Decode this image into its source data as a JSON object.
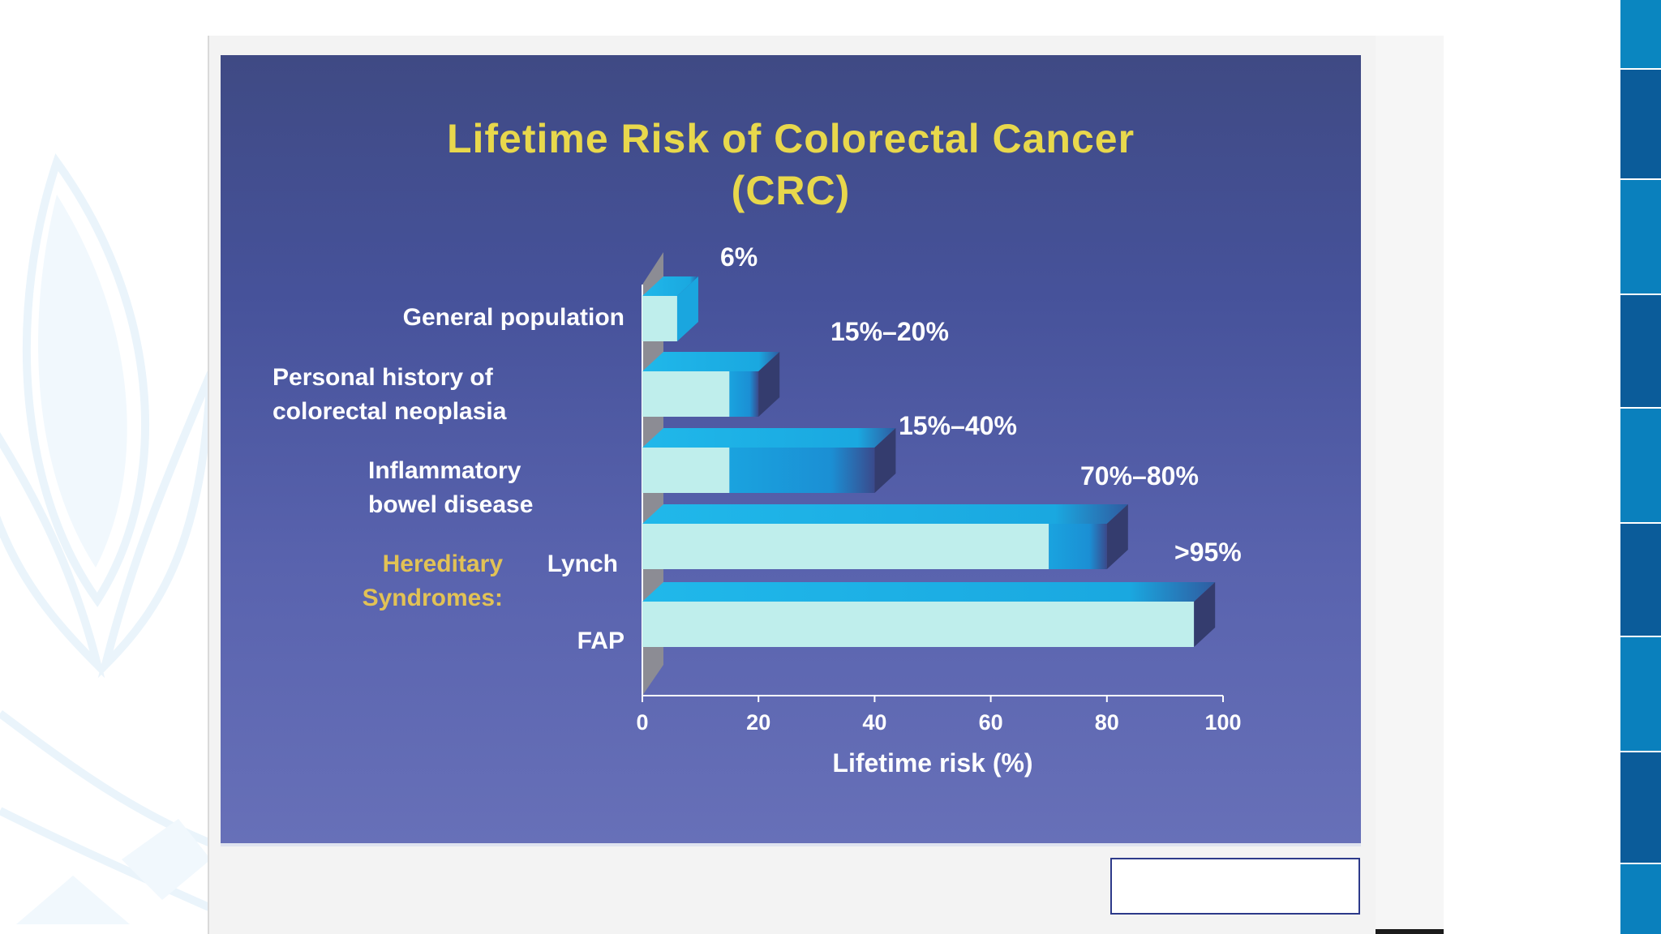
{
  "colors": {
    "title": "#e8d84c",
    "label": "#ffffff",
    "hereditary_label": "#e2c255",
    "bar_face": "#bfeeec",
    "bar_range": "#18a8e0",
    "bar_top": "#19b2e6",
    "bar_end": "#343c6e",
    "slide_background": "#4a56a0"
  },
  "slide": {
    "title_line1": "Lifetime Risk of Colorectal Cancer",
    "title_line2": "(CRC)"
  },
  "chart_data": {
    "type": "bar",
    "orientation": "horizontal",
    "style": "3d",
    "title": "Lifetime Risk of Colorectal Cancer (CRC)",
    "xlabel": "Lifetime risk (%)",
    "xlim": [
      0,
      100
    ],
    "xticks": [
      0,
      20,
      40,
      60,
      80,
      100
    ],
    "grid": false,
    "legend": "none",
    "group_label": [
      "Hereditary",
      "Syndromes:"
    ],
    "categories": [
      {
        "label_lines": [
          "General population"
        ],
        "low": 6,
        "high": 6,
        "value_label": "6%"
      },
      {
        "label_lines": [
          "Personal history of",
          "colorectal neoplasia"
        ],
        "low": 15,
        "high": 20,
        "value_label": "15%–20%"
      },
      {
        "label_lines": [
          "Inflammatory",
          "bowel disease"
        ],
        "low": 15,
        "high": 40,
        "value_label": "15%–40%"
      },
      {
        "label_lines": [
          "Lynch"
        ],
        "group": "Hereditary Syndromes:",
        "low": 70,
        "high": 80,
        "value_label": "70%–80%"
      },
      {
        "label_lines": [
          "FAP"
        ],
        "group": "Hereditary Syndromes:",
        "low": 95,
        "high": 95,
        "value_label": ">95%"
      }
    ]
  }
}
